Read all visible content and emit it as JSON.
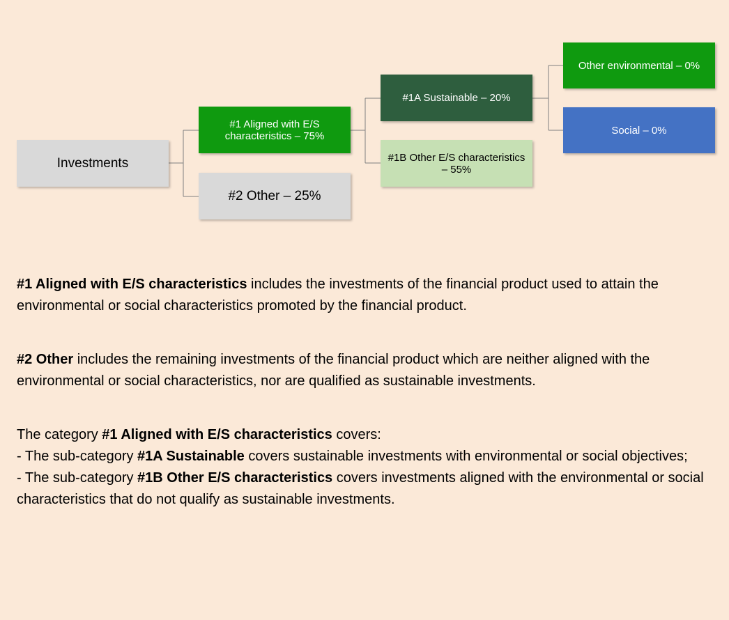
{
  "nodes": [
    {
      "label": "Investments",
      "color": "#d9d9d9",
      "text_color": "#000000"
    },
    {
      "label": "#1 Aligned with E/S characteristics – 75%",
      "color": "#0f9a0f",
      "text_color": "#ffffff"
    },
    {
      "label": "#2 Other – 25%",
      "color": "#d9d9d9",
      "text_color": "#000000"
    },
    {
      "label": "#1A Sustainable – 20%",
      "color": "#2e5e3e",
      "text_color": "#ffffff"
    },
    {
      "label": "#1B Other E/S characteristics – 55%",
      "color": "#c6e0b4",
      "text_color": "#000000"
    },
    {
      "label": "Other environmental – 0%",
      "color": "#0f9a0f",
      "text_color": "#ffffff"
    },
    {
      "label": "Social – 0%",
      "color": "#4472c4",
      "text_color": "#ffffff"
    }
  ],
  "paragraphs": [
    [
      [
        {
          "text": "#1 Aligned with E/S characteristics",
          "bold": true
        },
        {
          "text": " includes the investments of the financial product used to attain the environmental or social characteristics promoted by the financial product."
        }
      ]
    ],
    [
      [
        {
          "text": "#2 Other",
          "bold": true
        },
        {
          "text": " includes the remaining investments of the financial product which are neither aligned with the environmental or social characteristics, nor are qualified as sustainable investments."
        }
      ]
    ],
    [
      [
        {
          "text": "The category "
        },
        {
          "text": "#1 Aligned with E/S characteristics",
          "bold": true
        },
        {
          "text": " covers:"
        }
      ],
      [
        {
          "text": "- The sub-category "
        },
        {
          "text": "#1A Sustainable",
          "bold": true
        },
        {
          "text": " covers sustainable investments with environmental or social objectives;"
        }
      ],
      [
        {
          "text": "- The sub-category "
        },
        {
          "text": "#1B Other E/S characteristics",
          "bold": true
        },
        {
          "text": " covers investments aligned with the environmental or social characteristics that do not qualify as sustainable investments."
        }
      ]
    ]
  ]
}
